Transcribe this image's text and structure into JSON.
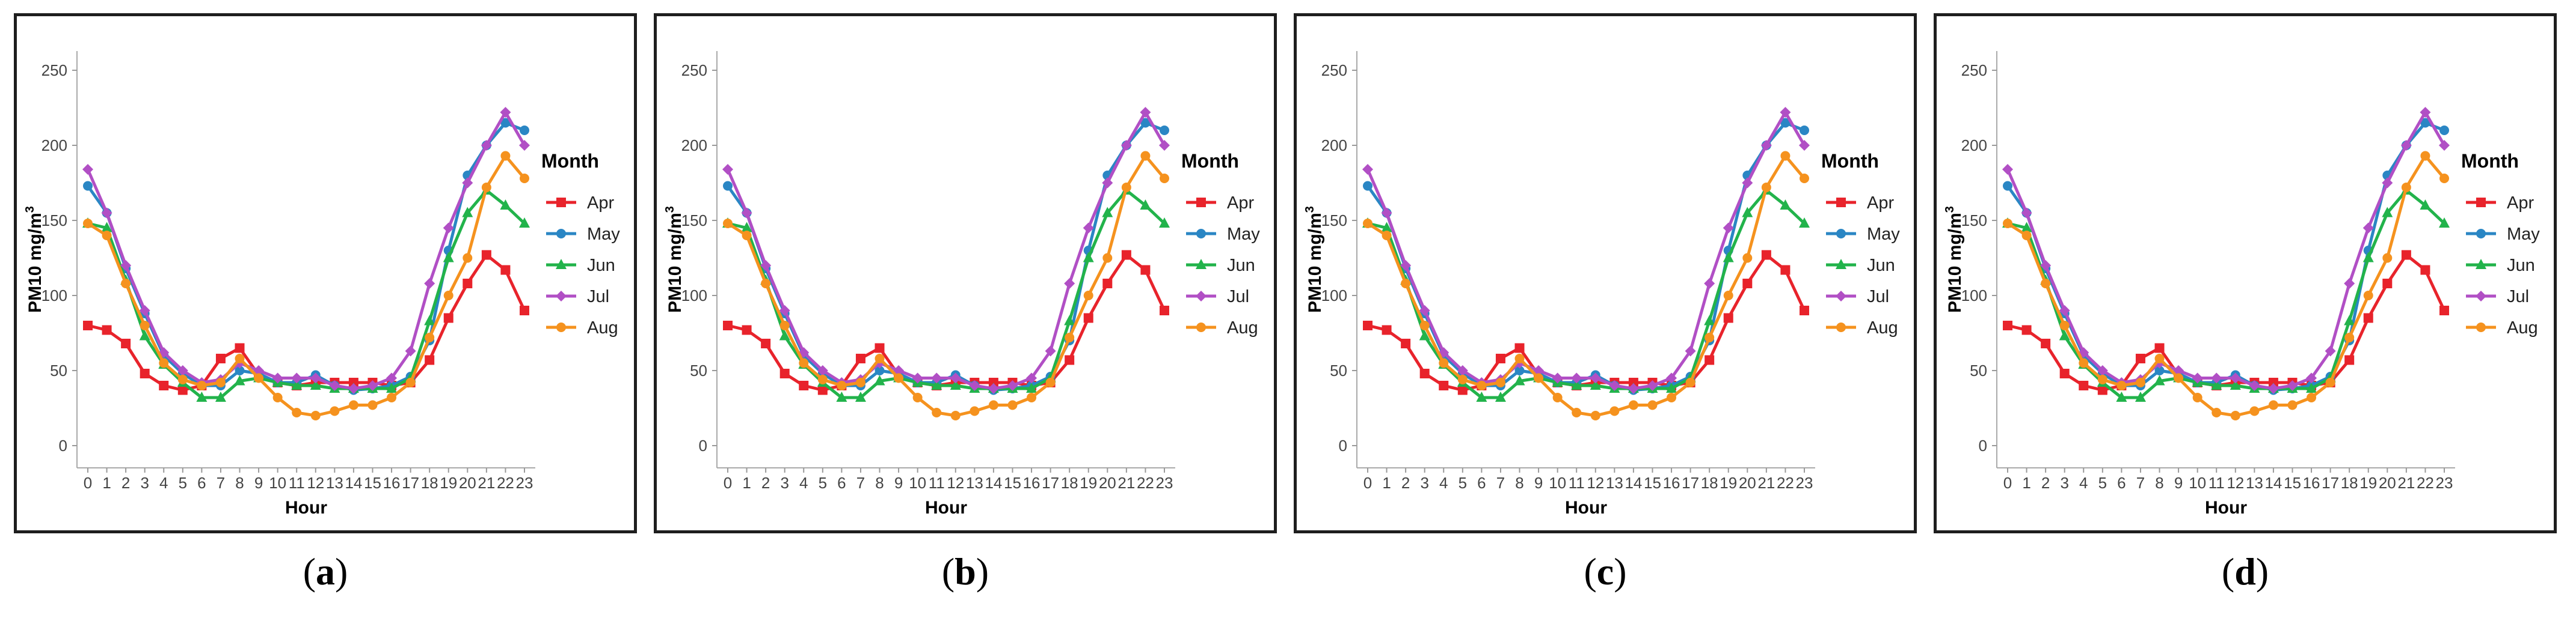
{
  "chart_data": [
    {
      "type": "line",
      "panel_label": "a",
      "xlabel": "Hour",
      "ylabel_main": "PM10 mg/m",
      "ylabel_sup": "3",
      "legend_title": "Month",
      "ylim": [
        0,
        250
      ],
      "yticks": [
        0,
        50,
        100,
        150,
        200,
        250
      ],
      "x": [
        0,
        1,
        2,
        3,
        4,
        5,
        6,
        7,
        8,
        9,
        10,
        11,
        12,
        13,
        14,
        15,
        16,
        17,
        18,
        19,
        20,
        21,
        22,
        23
      ],
      "series": [
        {
          "name": "Apr",
          "color": "#e8232b",
          "marker": "square",
          "values": [
            80,
            77,
            68,
            48,
            40,
            37,
            40,
            58,
            65,
            47,
            42,
            40,
            42,
            42,
            42,
            42,
            40,
            42,
            57,
            85,
            108,
            127,
            117,
            90
          ]
        },
        {
          "name": "May",
          "color": "#2a86c4",
          "marker": "circle",
          "values": [
            173,
            155,
            118,
            88,
            60,
            48,
            40,
            40,
            50,
            48,
            42,
            42,
            47,
            40,
            37,
            38,
            40,
            46,
            70,
            130,
            180,
            200,
            215,
            210
          ]
        },
        {
          "name": "Jun",
          "color": "#22b34b",
          "marker": "triangle",
          "values": [
            148,
            145,
            110,
            73,
            54,
            42,
            32,
            32,
            43,
            45,
            42,
            40,
            40,
            38,
            38,
            38,
            38,
            45,
            83,
            125,
            155,
            170,
            160,
            148
          ]
        },
        {
          "name": "Jul",
          "color": "#b14fc5",
          "marker": "diamond",
          "values": [
            184,
            155,
            120,
            90,
            62,
            50,
            42,
            44,
            55,
            50,
            45,
            45,
            45,
            40,
            38,
            40,
            45,
            63,
            108,
            145,
            175,
            200,
            222,
            200
          ]
        },
        {
          "name": "Aug",
          "color": "#f5921e",
          "marker": "circle",
          "values": [
            148,
            140,
            108,
            80,
            55,
            44,
            40,
            42,
            58,
            45,
            32,
            22,
            20,
            23,
            27,
            27,
            32,
            42,
            72,
            100,
            125,
            172,
            193,
            178
          ]
        }
      ]
    },
    {
      "type": "line",
      "panel_label": "b",
      "xlabel": "Hour",
      "ylabel_main": "PM10 mg/m",
      "ylabel_sup": "3",
      "legend_title": "Month",
      "ylim": [
        0,
        250
      ],
      "yticks": [
        0,
        50,
        100,
        150,
        200,
        250
      ],
      "x": [
        0,
        1,
        2,
        3,
        4,
        5,
        6,
        7,
        8,
        9,
        10,
        11,
        12,
        13,
        14,
        15,
        16,
        17,
        18,
        19,
        20,
        21,
        22,
        23
      ],
      "series": [
        {
          "name": "Apr",
          "color": "#e8232b",
          "marker": "square",
          "values": [
            80,
            77,
            68,
            48,
            40,
            37,
            40,
            58,
            65,
            47,
            42,
            40,
            42,
            42,
            42,
            42,
            40,
            42,
            57,
            85,
            108,
            127,
            117,
            90
          ]
        },
        {
          "name": "May",
          "color": "#2a86c4",
          "marker": "circle",
          "values": [
            173,
            155,
            118,
            88,
            60,
            48,
            40,
            40,
            50,
            48,
            42,
            42,
            47,
            40,
            37,
            38,
            40,
            46,
            70,
            130,
            180,
            200,
            215,
            210
          ]
        },
        {
          "name": "Jun",
          "color": "#22b34b",
          "marker": "triangle",
          "values": [
            148,
            145,
            110,
            73,
            54,
            42,
            32,
            32,
            43,
            45,
            42,
            40,
            40,
            38,
            38,
            38,
            38,
            45,
            83,
            125,
            155,
            170,
            160,
            148
          ]
        },
        {
          "name": "Jul",
          "color": "#b14fc5",
          "marker": "diamond",
          "values": [
            184,
            155,
            120,
            90,
            62,
            50,
            42,
            44,
            55,
            50,
            45,
            45,
            45,
            40,
            38,
            40,
            45,
            63,
            108,
            145,
            175,
            200,
            222,
            200
          ]
        },
        {
          "name": "Aug",
          "color": "#f5921e",
          "marker": "circle",
          "values": [
            148,
            140,
            108,
            80,
            55,
            44,
            40,
            42,
            58,
            45,
            32,
            22,
            20,
            23,
            27,
            27,
            32,
            42,
            72,
            100,
            125,
            172,
            193,
            178
          ]
        }
      ]
    },
    {
      "type": "line",
      "panel_label": "c",
      "xlabel": "Hour",
      "ylabel_main": "PM10 mg/m",
      "ylabel_sup": "3",
      "legend_title": "Month",
      "ylim": [
        0,
        250
      ],
      "yticks": [
        0,
        50,
        100,
        150,
        200,
        250
      ],
      "x": [
        0,
        1,
        2,
        3,
        4,
        5,
        6,
        7,
        8,
        9,
        10,
        11,
        12,
        13,
        14,
        15,
        16,
        17,
        18,
        19,
        20,
        21,
        22,
        23
      ],
      "series": [
        {
          "name": "Apr",
          "color": "#e8232b",
          "marker": "square",
          "values": [
            80,
            77,
            68,
            48,
            40,
            37,
            40,
            58,
            65,
            47,
            42,
            40,
            42,
            42,
            42,
            42,
            40,
            42,
            57,
            85,
            108,
            127,
            117,
            90
          ]
        },
        {
          "name": "May",
          "color": "#2a86c4",
          "marker": "circle",
          "values": [
            173,
            155,
            118,
            88,
            60,
            48,
            40,
            40,
            50,
            48,
            42,
            42,
            47,
            40,
            37,
            38,
            40,
            46,
            70,
            130,
            180,
            200,
            215,
            210
          ]
        },
        {
          "name": "Jun",
          "color": "#22b34b",
          "marker": "triangle",
          "values": [
            148,
            145,
            110,
            73,
            54,
            42,
            32,
            32,
            43,
            45,
            42,
            40,
            40,
            38,
            38,
            38,
            38,
            45,
            83,
            125,
            155,
            170,
            160,
            148
          ]
        },
        {
          "name": "Jul",
          "color": "#b14fc5",
          "marker": "diamond",
          "values": [
            184,
            155,
            120,
            90,
            62,
            50,
            42,
            44,
            55,
            50,
            45,
            45,
            45,
            40,
            38,
            40,
            45,
            63,
            108,
            145,
            175,
            200,
            222,
            200
          ]
        },
        {
          "name": "Aug",
          "color": "#f5921e",
          "marker": "circle",
          "values": [
            148,
            140,
            108,
            80,
            55,
            44,
            40,
            42,
            58,
            45,
            32,
            22,
            20,
            23,
            27,
            27,
            32,
            42,
            72,
            100,
            125,
            172,
            193,
            178
          ]
        }
      ]
    },
    {
      "type": "line",
      "panel_label": "d",
      "xlabel": "Hour",
      "ylabel_main": "PM10 mg/m",
      "ylabel_sup": "3",
      "legend_title": "Month",
      "ylim": [
        0,
        250
      ],
      "yticks": [
        0,
        50,
        100,
        150,
        200,
        250
      ],
      "x": [
        0,
        1,
        2,
        3,
        4,
        5,
        6,
        7,
        8,
        9,
        10,
        11,
        12,
        13,
        14,
        15,
        16,
        17,
        18,
        19,
        20,
        21,
        22,
        23
      ],
      "series": [
        {
          "name": "Apr",
          "color": "#e8232b",
          "marker": "square",
          "values": [
            80,
            77,
            68,
            48,
            40,
            37,
            40,
            58,
            65,
            47,
            42,
            40,
            42,
            42,
            42,
            42,
            40,
            42,
            57,
            85,
            108,
            127,
            117,
            90
          ]
        },
        {
          "name": "May",
          "color": "#2a86c4",
          "marker": "circle",
          "values": [
            173,
            155,
            118,
            88,
            60,
            48,
            40,
            40,
            50,
            48,
            42,
            42,
            47,
            40,
            37,
            38,
            40,
            46,
            70,
            130,
            180,
            200,
            215,
            210
          ]
        },
        {
          "name": "Jun",
          "color": "#22b34b",
          "marker": "triangle",
          "values": [
            148,
            145,
            110,
            73,
            54,
            42,
            32,
            32,
            43,
            45,
            42,
            40,
            40,
            38,
            38,
            38,
            38,
            45,
            83,
            125,
            155,
            170,
            160,
            148
          ]
        },
        {
          "name": "Jul",
          "color": "#b14fc5",
          "marker": "diamond",
          "values": [
            184,
            155,
            120,
            90,
            62,
            50,
            42,
            44,
            55,
            50,
            45,
            45,
            45,
            40,
            38,
            40,
            45,
            63,
            108,
            145,
            175,
            200,
            222,
            200
          ]
        },
        {
          "name": "Aug",
          "color": "#f5921e",
          "marker": "circle",
          "values": [
            148,
            140,
            108,
            80,
            55,
            44,
            40,
            42,
            58,
            45,
            32,
            22,
            20,
            23,
            27,
            27,
            32,
            42,
            72,
            100,
            125,
            172,
            193,
            178
          ]
        }
      ]
    }
  ]
}
